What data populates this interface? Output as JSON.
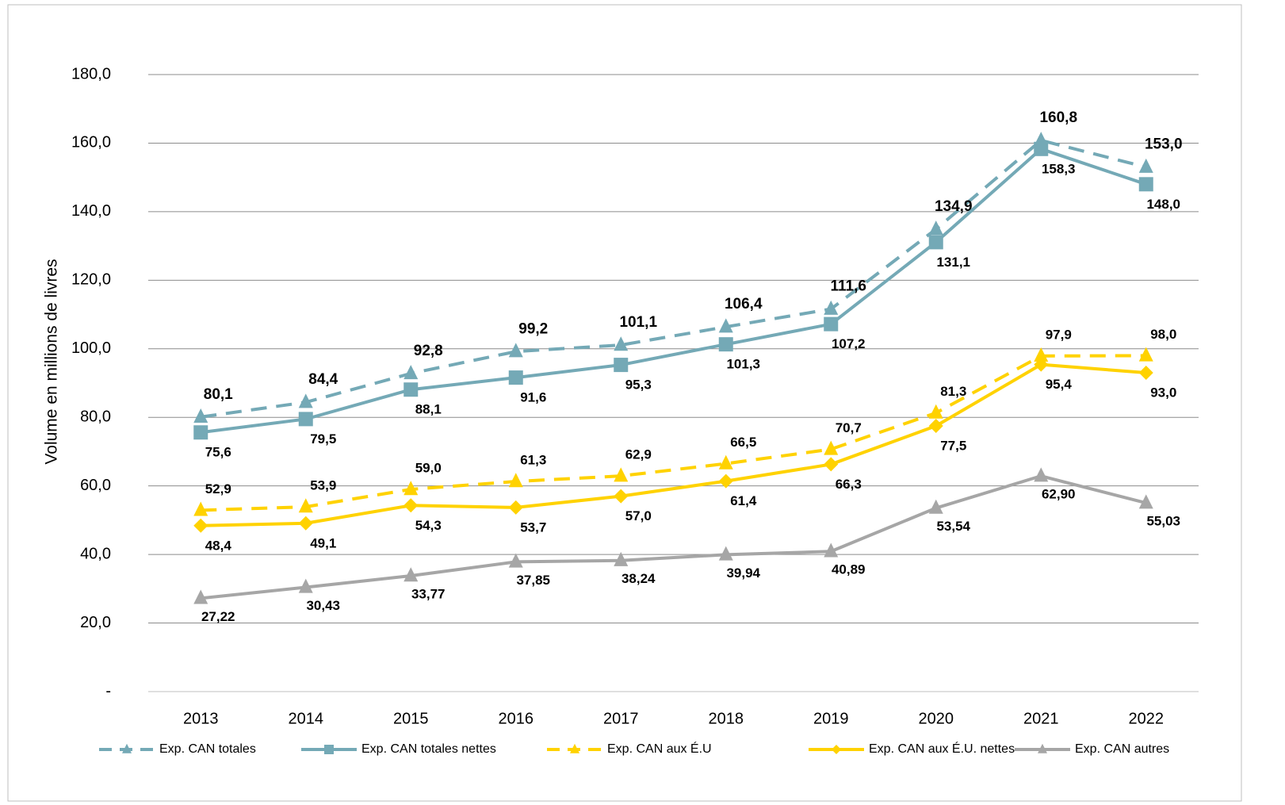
{
  "chart_data": {
    "type": "line",
    "y_label": "Volume en millions  de livres",
    "categories": [
      "2013",
      "2014",
      "2015",
      "2016",
      "2017",
      "2018",
      "2019",
      "2020",
      "2021",
      "2022"
    ],
    "ylim": [
      0,
      180
    ],
    "yticks": [
      {
        "value": 0,
        "label": "-"
      },
      {
        "value": 20,
        "label": "20,0"
      },
      {
        "value": 40,
        "label": "40,0"
      },
      {
        "value": 60,
        "label": "60,0"
      },
      {
        "value": 80,
        "label": "80,0"
      },
      {
        "value": 100,
        "label": "100,0"
      },
      {
        "value": 120,
        "label": "120,0"
      },
      {
        "value": 140,
        "label": "140,0"
      },
      {
        "value": 160,
        "label": "160,0"
      },
      {
        "value": 180,
        "label": "180,0"
      }
    ],
    "grid": true,
    "legend": "bottom",
    "series": [
      {
        "name": "Exp. CAN totales",
        "color": "#74a9b6",
        "dashed": true,
        "marker": "triangle",
        "values": [
          80.1,
          84.4,
          92.8,
          99.2,
          101.1,
          106.4,
          111.6,
          134.9,
          160.8,
          153.0
        ],
        "value_labels": [
          "80,1",
          "84,4",
          "92,8",
          "99,2",
          "101,1",
          "106,4",
          "111,6",
          "134,9",
          "160,8",
          "153,0"
        ]
      },
      {
        "name": "Exp. CAN totales nettes",
        "color": "#74a9b6",
        "dashed": false,
        "marker": "square",
        "values": [
          75.6,
          79.5,
          88.1,
          91.6,
          95.3,
          101.3,
          107.2,
          131.1,
          158.3,
          148.0
        ],
        "value_labels": [
          "75,6",
          "79,5",
          "88,1",
          "91,6",
          "95,3",
          "101,3",
          "107,2",
          "131,1",
          "158,3",
          "148,0"
        ]
      },
      {
        "name": "Exp. CAN aux É.U",
        "color": "#ffd200",
        "dashed": true,
        "marker": "triangle",
        "values": [
          52.9,
          53.9,
          59.0,
          61.3,
          62.9,
          66.5,
          70.7,
          81.3,
          97.9,
          98.0
        ],
        "value_labels": [
          "52,9",
          "53,9",
          "59,0",
          "61,3",
          "62,9",
          "66,5",
          "70,7",
          "81,3",
          "97,9",
          "98,0"
        ]
      },
      {
        "name": "Exp. CAN aux É.U. nettes",
        "color": "#ffd200",
        "dashed": false,
        "marker": "diamond",
        "values": [
          48.4,
          49.1,
          54.3,
          53.7,
          57.0,
          61.4,
          66.3,
          77.5,
          95.4,
          93.0
        ],
        "value_labels": [
          "48,4",
          "49,1",
          "54,3",
          "53,7",
          "57,0",
          "61,4",
          "66,3",
          "77,5",
          "95,4",
          "93,0"
        ]
      },
      {
        "name": "Exp. CAN autres",
        "color": "#a6a6a6",
        "dashed": false,
        "marker": "triangle",
        "values": [
          27.22,
          30.43,
          33.77,
          37.85,
          38.24,
          39.94,
          40.89,
          53.54,
          62.9,
          55.03
        ],
        "value_labels": [
          "27,22",
          "30,43",
          "33,77",
          "37,85",
          "38,24",
          "39,94",
          "40,89",
          "53,54",
          "62,90",
          "55,03"
        ]
      }
    ]
  }
}
